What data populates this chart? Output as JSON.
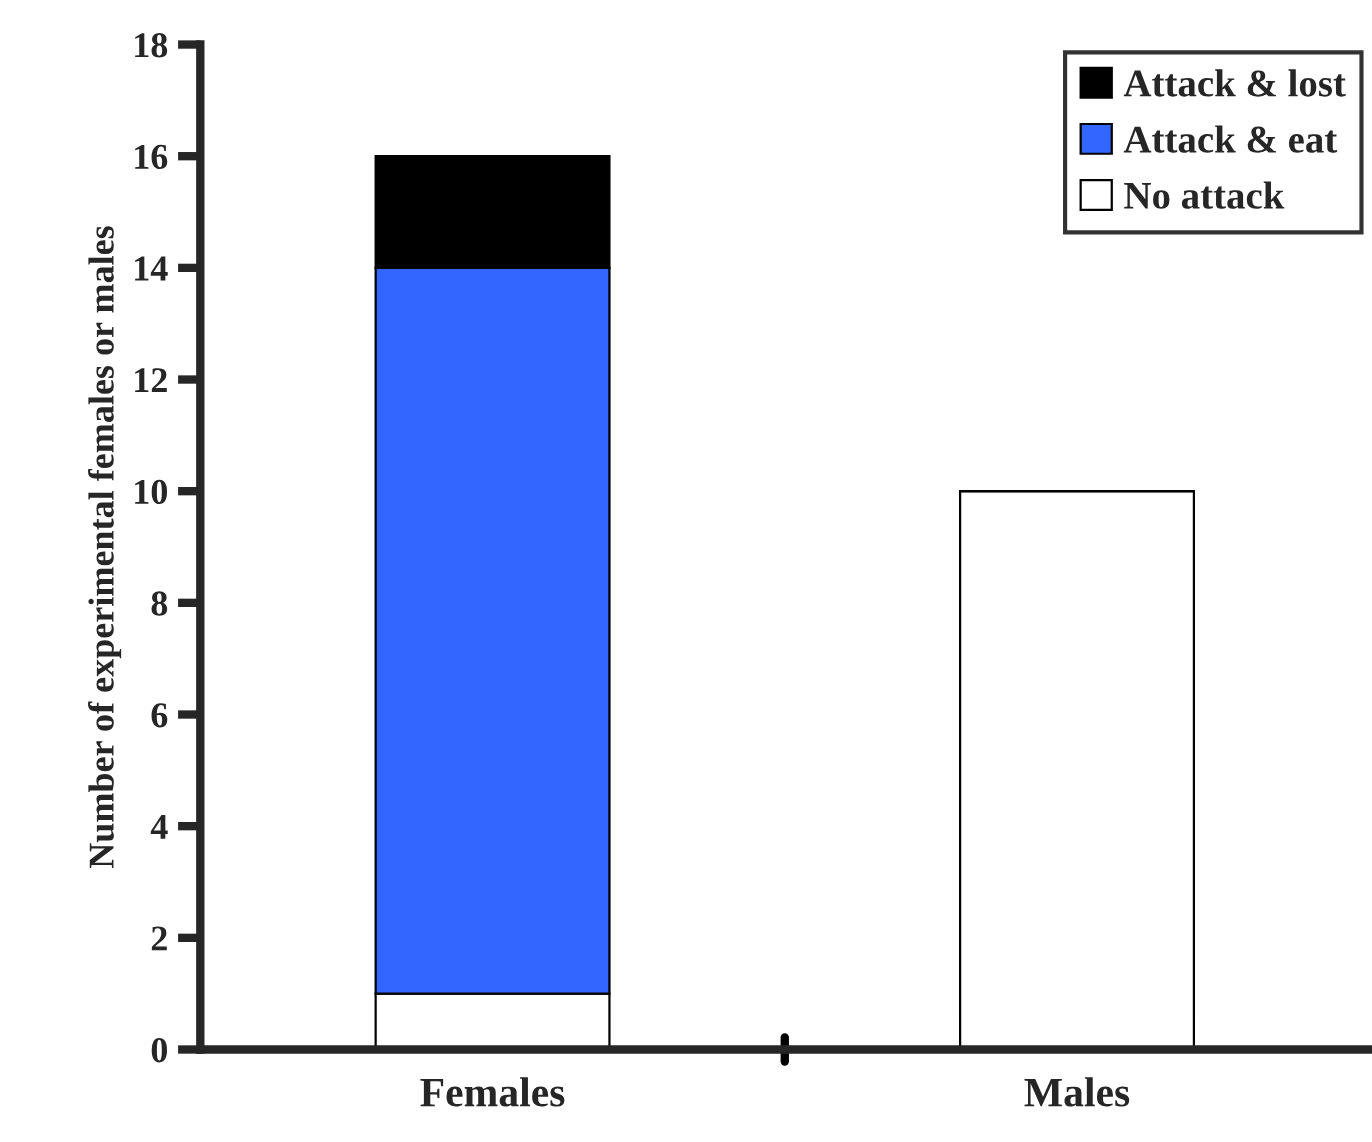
{
  "chart_data": {
    "type": "bar",
    "stacked": true,
    "ylabel": "Number of experimental females or males",
    "categories": [
      "Females",
      "Males"
    ],
    "series": [
      {
        "name": "No attack",
        "color": "#ffffff",
        "values": [
          1,
          10
        ]
      },
      {
        "name": "Attack & eat",
        "color": "#3366ff",
        "values": [
          13,
          0
        ]
      },
      {
        "name": "Attack & lost",
        "color": "#000000",
        "values": [
          2,
          0
        ]
      }
    ],
    "ylim": [
      0,
      18
    ],
    "yticks": [
      0,
      2,
      4,
      6,
      8,
      10,
      12,
      14,
      16,
      18
    ],
    "grid": false,
    "legend": "top right"
  }
}
